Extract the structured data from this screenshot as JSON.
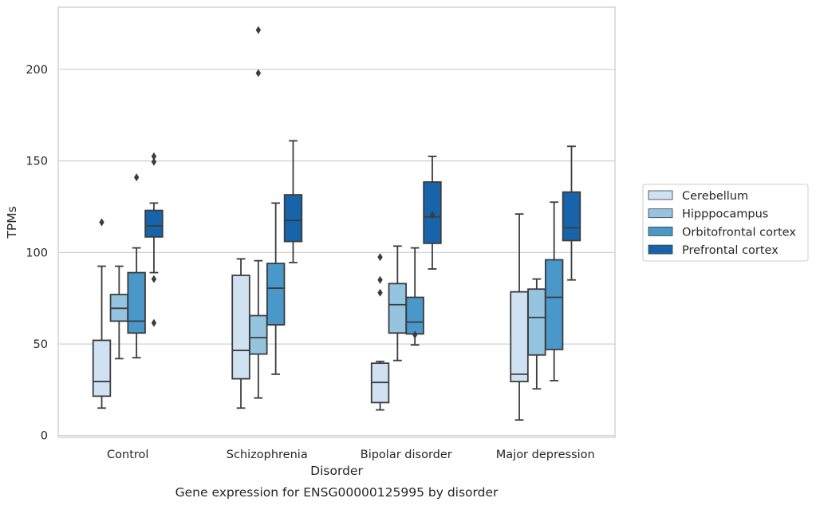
{
  "chart_data": {
    "type": "box",
    "title": "",
    "caption": "Gene expression for ENSG00000125995 by disorder",
    "xlabel": "Disorder",
    "ylabel": "TPMs",
    "ylim": [
      -1,
      234
    ],
    "yticks": [
      0,
      50,
      100,
      150,
      200
    ],
    "grid": "horizontal",
    "legend_position": "right",
    "categories": [
      "Control",
      "Schizophrenia",
      "Bipolar disorder",
      "Major depression"
    ],
    "series": [
      {
        "name": "Cerebellum",
        "color": "#d0e1f2",
        "boxes": [
          {
            "whislo": 15,
            "q1": 21.5,
            "med": 29.5,
            "q3": 52,
            "whishi": 92.5,
            "fliers": [
              116.5
            ]
          },
          {
            "whislo": 15,
            "q1": 31,
            "med": 46.5,
            "q3": 87.5,
            "whishi": 96.5,
            "fliers": []
          },
          {
            "whislo": 14,
            "q1": 18,
            "med": 29,
            "q3": 39.5,
            "whishi": 40.5,
            "fliers": [
              78,
              85,
              97.5
            ]
          },
          {
            "whislo": 8.5,
            "q1": 29.5,
            "med": 33.5,
            "q3": 78.5,
            "whishi": 121,
            "fliers": []
          }
        ]
      },
      {
        "name": "Hipppocampus",
        "color": "#94c4df",
        "boxes": [
          {
            "whislo": 42,
            "q1": 62.5,
            "med": 69.5,
            "q3": 77,
            "whishi": 92.5,
            "fliers": []
          },
          {
            "whislo": 20.5,
            "q1": 44.5,
            "med": 53.5,
            "q3": 65.5,
            "whishi": 95.5,
            "fliers": [
              198,
              221.5
            ]
          },
          {
            "whislo": 41,
            "q1": 56,
            "med": 71.5,
            "q3": 83,
            "whishi": 103.5,
            "fliers": []
          },
          {
            "whislo": 25.5,
            "q1": 44,
            "med": 64.5,
            "q3": 80,
            "whishi": 85.5,
            "fliers": []
          }
        ]
      },
      {
        "name": "Orbitofrontal cortex",
        "color": "#4a98c9",
        "boxes": [
          {
            "whislo": 42.5,
            "q1": 56,
            "med": 62.5,
            "q3": 89,
            "whishi": 102.5,
            "fliers": [
              141
            ]
          },
          {
            "whislo": 33.5,
            "q1": 60.5,
            "med": 80.5,
            "q3": 94,
            "whishi": 127,
            "fliers": []
          },
          {
            "whislo": 49.5,
            "q1": 55.5,
            "med": 62,
            "q3": 75.5,
            "whishi": 102.5,
            "fliers": [
              55
            ]
          },
          {
            "whislo": 30,
            "q1": 47,
            "med": 75.5,
            "q3": 96,
            "whishi": 127.5,
            "fliers": []
          }
        ]
      },
      {
        "name": "Prefrontal cortex",
        "color": "#1764ab",
        "boxes": [
          {
            "whislo": 89,
            "q1": 108.5,
            "med": 114.5,
            "q3": 123,
            "whishi": 127,
            "fliers": [
              61.5,
              85.5,
              149.5,
              152.5
            ]
          },
          {
            "whislo": 94.5,
            "q1": 106,
            "med": 117.5,
            "q3": 131.5,
            "whishi": 161,
            "fliers": []
          },
          {
            "whislo": 91,
            "q1": 105,
            "med": 119.5,
            "q3": 138.5,
            "whishi": 152.5,
            "fliers": [
              120.5
            ]
          },
          {
            "whislo": 85,
            "q1": 106.5,
            "med": 113.5,
            "q3": 133,
            "whishi": 158,
            "fliers": []
          }
        ]
      }
    ]
  }
}
